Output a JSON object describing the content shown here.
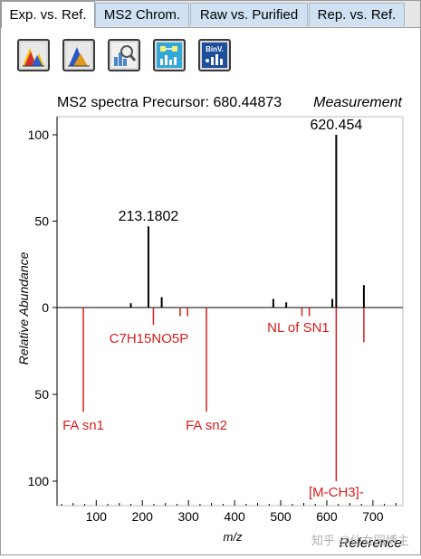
{
  "tabs": [
    {
      "label": "Exp. vs. Ref.",
      "active": true
    },
    {
      "label": "MS2 Chrom.",
      "active": false
    },
    {
      "label": "Raw vs. Purified",
      "active": false
    },
    {
      "label": "Rep. vs. Ref.",
      "active": false
    }
  ],
  "toolbar": {
    "buttons": [
      {
        "icon": "spectrum-color-icon"
      },
      {
        "icon": "spectrum-blue-icon"
      },
      {
        "icon": "zoom-bar-chart-icon"
      },
      {
        "icon": "molecule-chart-icon"
      },
      {
        "icon": "binv-chart-icon",
        "text": "BinV."
      }
    ]
  },
  "watermark": "知乎 @仙女园博主",
  "chart_data": {
    "type": "bar",
    "title": "MS2 spectra Precursor: 680.44873",
    "top_label": "Measurement",
    "bottom_label": "Reference",
    "xlabel": "m/z",
    "ylabel": "Relative Abundance",
    "xlim": [
      15,
      765
    ],
    "ylim": [
      -110,
      110
    ],
    "xticks": [
      100,
      200,
      300,
      400,
      500,
      600,
      700
    ],
    "yticks_top": [
      50,
      100
    ],
    "yticks_bottom": [
      50,
      100
    ],
    "colors": {
      "measurement": "#000000",
      "reference": "#d42020"
    },
    "series": [
      {
        "name": "Measurement",
        "points": [
          {
            "x": 175,
            "y": 2.5
          },
          {
            "x": 213.1802,
            "y": 47,
            "label": "213.1802"
          },
          {
            "x": 242,
            "y": 6
          },
          {
            "x": 484,
            "y": 5
          },
          {
            "x": 512,
            "y": 3
          },
          {
            "x": 612,
            "y": 5
          },
          {
            "x": 620.454,
            "y": 100,
            "label": "620.454"
          },
          {
            "x": 680.4,
            "y": 13
          }
        ]
      },
      {
        "name": "Reference",
        "points": [
          {
            "x": 72,
            "y": 60,
            "label": "FA sn1"
          },
          {
            "x": 224,
            "y": 10,
            "label": "C7H15NO5P"
          },
          {
            "x": 282,
            "y": 5
          },
          {
            "x": 298,
            "y": 5
          },
          {
            "x": 339,
            "y": 60,
            "label": "FA sn2"
          },
          {
            "x": 546,
            "y": 5,
            "label": "NL of SN1"
          },
          {
            "x": 562,
            "y": 5
          },
          {
            "x": 620.454,
            "y": 100,
            "label": "[M-CH3]-"
          },
          {
            "x": 680.4,
            "y": 20
          }
        ]
      }
    ]
  }
}
